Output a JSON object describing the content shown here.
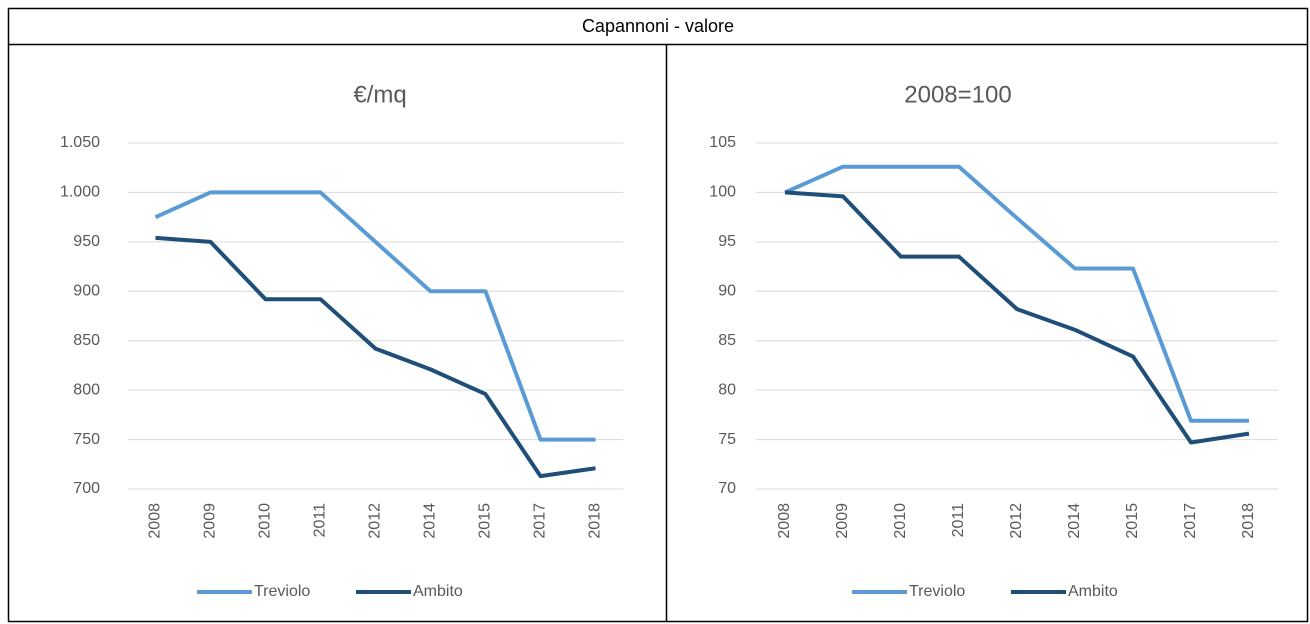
{
  "header": {
    "title": "Capannoni - valore"
  },
  "chart_data": [
    {
      "type": "line",
      "title": "€/mq",
      "categories": [
        "2008",
        "2009",
        "2010",
        "2011",
        "2012",
        "2014",
        "2015",
        "2017",
        "2018"
      ],
      "series": [
        {
          "name": "Treviolo",
          "color": "#5b9bd5",
          "values": [
            975,
            1000,
            1000,
            1000,
            950,
            900,
            900,
            750,
            750
          ]
        },
        {
          "name": "Ambito",
          "color": "#1f4e79",
          "values": [
            954,
            950,
            892,
            892,
            842,
            821,
            796,
            713,
            721
          ]
        }
      ],
      "ylim": [
        700,
        1050
      ],
      "yticks": [
        700,
        750,
        800,
        850,
        900,
        950,
        {
          "value": 1000,
          "label": "1.000"
        },
        {
          "value": 1050,
          "label": "1.050"
        }
      ],
      "grid": true,
      "legend": "bottom"
    },
    {
      "type": "line",
      "title": "2008=100",
      "categories": [
        "2008",
        "2009",
        "2010",
        "2011",
        "2012",
        "2014",
        "2015",
        "2017",
        "2018"
      ],
      "series": [
        {
          "name": "Treviolo",
          "color": "#5b9bd5",
          "values": [
            100,
            102.6,
            102.6,
            102.6,
            97.4,
            92.3,
            92.3,
            76.9,
            76.9
          ]
        },
        {
          "name": "Ambito",
          "color": "#1f4e79",
          "values": [
            100,
            99.6,
            93.5,
            93.5,
            88.2,
            86.1,
            83.4,
            74.7,
            75.6
          ]
        }
      ],
      "ylim": [
        70,
        105
      ],
      "yticks": [
        70,
        75,
        80,
        85,
        90,
        95,
        100,
        105
      ],
      "grid": true,
      "legend": "bottom"
    }
  ]
}
